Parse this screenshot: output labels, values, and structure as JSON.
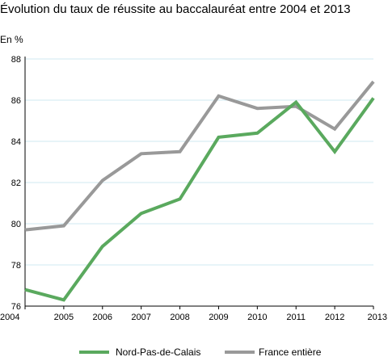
{
  "chart_data": {
    "type": "line",
    "title": "Évolution du taux de réussite au baccalauréat entre 2004 et 2013",
    "ylabel": "En %",
    "xlabel": "",
    "x": [
      2004,
      2005,
      2006,
      2007,
      2008,
      2009,
      2010,
      2011,
      2012,
      2013
    ],
    "x_ticks": [
      "2004",
      "2005",
      "2006",
      "2007",
      "2008",
      "2009",
      "2010",
      "2011",
      "2012",
      "2013"
    ],
    "y_ticks": [
      "76",
      "78",
      "80",
      "82",
      "84",
      "86",
      "88"
    ],
    "ylim": [
      76,
      88
    ],
    "grid": "horizontal",
    "legend_position": "bottom",
    "series": [
      {
        "name": "Nord-Pas-de-Calais",
        "color": "#5aa95e",
        "values": [
          76.8,
          76.3,
          78.9,
          80.5,
          81.2,
          84.2,
          84.4,
          85.9,
          83.5,
          86.1
        ]
      },
      {
        "name": "France entière",
        "color": "#999999",
        "values": [
          79.7,
          79.9,
          82.1,
          83.4,
          83.5,
          86.2,
          85.6,
          85.7,
          84.6,
          86.9
        ]
      }
    ],
    "colors": {
      "grid": "#cfe9f2",
      "axis": "#000000"
    }
  }
}
